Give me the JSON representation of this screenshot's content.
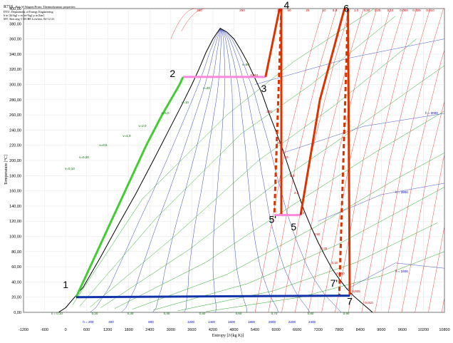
{
  "chart_data": {
    "type": "line",
    "title": "R718",
    "subtitle": "Ref: W.Wagner/Pruss: Thermodynamic properties",
    "info_lines": [
      "DTU, Department of Energy Engineering",
      "h in [kJ/kg]  v in [m³/kg]  p in [bar]",
      "MT, Sket.eng © IICBE Lowlent, 04-12-21"
    ],
    "xlabel": "Entropy [J/(kg K)]",
    "ylabel": "Temperature [°C]",
    "xlim": [
      -1200,
      10800
    ],
    "ylim": [
      0,
      400
    ],
    "x_ticks": [
      "-1200",
      "-600",
      "0",
      "600",
      "1200",
      "1800",
      "2400",
      "3000",
      "3600",
      "4200",
      "4800",
      "5400",
      "6000",
      "6600",
      "7200",
      "7800",
      "8400",
      "9000",
      "9600",
      "10200",
      "10800"
    ],
    "y_ticks": [
      "0,00",
      "20,00",
      "40,00",
      "60,00",
      "80,00",
      "100,00",
      "120,00",
      "140,00",
      "160,00",
      "180,00",
      "200,00",
      "220,00",
      "240,00",
      "260,00",
      "280,00",
      "300,00",
      "320,00",
      "340,00",
      "360,00",
      "380,00",
      "400,00"
    ],
    "grid": true,
    "saturation_dome": {
      "liquid": [
        [
          -200,
          0
        ],
        [
          0,
          6
        ],
        [
          500,
          33
        ],
        [
          1000,
          73
        ],
        [
          1500,
          115
        ],
        [
          2000,
          156
        ],
        [
          2500,
          200
        ],
        [
          3000,
          245
        ],
        [
          3300,
          272
        ],
        [
          3600,
          300
        ],
        [
          3800,
          320
        ],
        [
          4000,
          342
        ],
        [
          4200,
          360
        ],
        [
          4407,
          374
        ]
      ],
      "vapor": [
        [
          4407,
          374
        ],
        [
          4600,
          369
        ],
        [
          4800,
          360
        ],
        [
          5000,
          345
        ],
        [
          5200,
          328
        ],
        [
          5400,
          308
        ],
        [
          5600,
          288
        ],
        [
          5800,
          262
        ],
        [
          6000,
          238
        ],
        [
          6200,
          213
        ],
        [
          6400,
          185
        ],
        [
          6600,
          160
        ],
        [
          6800,
          134
        ],
        [
          7000,
          112
        ],
        [
          7200,
          92
        ],
        [
          7400,
          74
        ],
        [
          7600,
          57
        ],
        [
          7800,
          44
        ],
        [
          8000,
          32
        ],
        [
          8200,
          22
        ],
        [
          8400,
          14
        ],
        [
          8600,
          6
        ],
        [
          8750,
          0
        ]
      ]
    },
    "quality_labels": [
      "x = 0,10",
      "0,20",
      "0,30",
      "0,40",
      "0,50",
      "0,60",
      "0,70",
      "0,80",
      "0,90"
    ],
    "enthalpy_labels": [
      "h = 200",
      "400",
      "800",
      "1200",
      "1400",
      "1600",
      "1800",
      "2000",
      "2200",
      "2400",
      "h = 2400",
      "h = 2800",
      "h = 3000"
    ],
    "volume_labels": [
      "v=0,10",
      "v=0,20",
      "v=0,5",
      "v=1,0",
      "v=2,0",
      "v=5,0",
      "v=10",
      "v=20",
      "v=50"
    ],
    "pressure_labels_top": [
      "300",
      "250",
      "100",
      "50",
      "25",
      "10",
      "5,0",
      "2,5",
      "1,0",
      "0,50",
      "0,25",
      "0,10",
      "0,050",
      "0,025",
      "0,010"
    ],
    "pressure_labels_side": [
      "0,001",
      "300",
      "25",
      "10",
      "5,0",
      "2,5",
      "1,0",
      "0,50",
      "0,25",
      "0,10",
      "0,050",
      "0,025",
      "0,010"
    ],
    "series": [
      {
        "name": "",
        "color": "#44cc33",
        "style": "solid",
        "points": [
          [
            300,
            20
          ],
          [
            700,
            60
          ],
          [
            1100,
            100
          ],
          [
            1500,
            140
          ],
          [
            1900,
            180
          ],
          [
            2300,
            220
          ],
          [
            2750,
            260
          ],
          [
            3250,
            300
          ],
          [
            3350,
            310
          ]
        ]
      },
      {
        "name": "",
        "color": "#ff88dd",
        "style": "solid",
        "points": [
          [
            3350,
            310
          ],
          [
            4300,
            310
          ],
          [
            5250,
            310
          ],
          [
            5700,
            310
          ]
        ]
      },
      {
        "name": "",
        "color": "#dd3300",
        "style": "solid",
        "points": [
          [
            5700,
            310
          ],
          [
            6100,
            400
          ],
          [
            6150,
            400
          ],
          [
            6150,
            128
          ]
        ]
      },
      {
        "name": "",
        "color": "#dd3300",
        "style": "dashed",
        "points": [
          [
            6150,
            400
          ],
          [
            5950,
            128
          ]
        ]
      },
      {
        "name": "",
        "color": "#ff88dd",
        "style": "solid",
        "points": [
          [
            5950,
            128
          ],
          [
            6700,
            128
          ]
        ]
      },
      {
        "name": "",
        "color": "#dd3300",
        "style": "solid",
        "points": [
          [
            6700,
            128
          ],
          [
            7250,
            280
          ],
          [
            7950,
            400
          ],
          [
            8050,
            400
          ],
          [
            8100,
            22
          ]
        ]
      },
      {
        "name": "",
        "color": "#dd3300",
        "style": "dashed",
        "points": [
          [
            8050,
            400
          ],
          [
            7800,
            22
          ]
        ]
      },
      {
        "name": "",
        "color": "#1133aa",
        "style": "solid",
        "points": [
          [
            300,
            20
          ],
          [
            4000,
            21
          ],
          [
            8100,
            22
          ]
        ]
      }
    ],
    "point_labels": [
      {
        "text": "1",
        "x": 0,
        "y": 32
      },
      {
        "text": "2",
        "x": 3050,
        "y": 310
      },
      {
        "text": "3",
        "x": 5650,
        "y": 290
      },
      {
        "text": "4",
        "x": 6300,
        "y": 400
      },
      {
        "text": "5'",
        "x": 5900,
        "y": 118
      },
      {
        "text": "5",
        "x": 6500,
        "y": 108
      },
      {
        "text": "6",
        "x": 8000,
        "y": 396
      },
      {
        "text": "7'",
        "x": 7650,
        "y": 34
      },
      {
        "text": "7",
        "x": 8100,
        "y": 10
      }
    ]
  }
}
